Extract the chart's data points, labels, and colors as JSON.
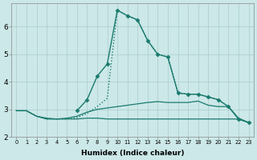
{
  "xlabel": "Humidex (Indice chaleur)",
  "background_color": "#cce8e8",
  "grid_color": "#aacccc",
  "line_color": "#1a7a6e",
  "xlim_min": -0.5,
  "xlim_max": 23.5,
  "ylim_min": 2.2,
  "ylim_max": 6.85,
  "yticks": [
    2,
    3,
    4,
    5,
    6
  ],
  "xticks": [
    0,
    1,
    2,
    3,
    4,
    5,
    6,
    7,
    8,
    9,
    10,
    11,
    12,
    13,
    14,
    15,
    16,
    17,
    18,
    19,
    20,
    21,
    22,
    23
  ],
  "series": [
    {
      "x": [
        0,
        1,
        2,
        3,
        4,
        5,
        6,
        7,
        8,
        9,
        10,
        11,
        12,
        13,
        14,
        15,
        16,
        17,
        18,
        19,
        20,
        21,
        22,
        23
      ],
      "y": [
        2.95,
        2.95,
        2.75,
        2.65,
        2.65,
        2.65,
        2.7,
        2.85,
        3.1,
        3.4,
        6.6,
        6.4,
        6.25,
        5.5,
        5.0,
        4.9,
        3.6,
        3.55,
        3.55,
        3.45,
        3.35,
        3.1,
        2.65,
        2.52
      ],
      "ls": "dotted",
      "marker": null,
      "ms": 0,
      "lw": 1.0
    },
    {
      "x": [
        6,
        7,
        8,
        9,
        10,
        11,
        12,
        13,
        14,
        15,
        16,
        17,
        18,
        19,
        20,
        21,
        22,
        23
      ],
      "y": [
        2.95,
        3.35,
        4.2,
        4.65,
        6.6,
        6.4,
        6.25,
        5.5,
        5.0,
        4.9,
        3.6,
        3.55,
        3.55,
        3.45,
        3.35,
        3.1,
        2.65,
        2.52
      ],
      "ls": "solid",
      "marker": "D",
      "ms": 2.5,
      "lw": 1.0
    },
    {
      "x": [
        0,
        1,
        2,
        3,
        4,
        5,
        6,
        7,
        8,
        9,
        10,
        11,
        12,
        13,
        14,
        15,
        16,
        17,
        18,
        19,
        20,
        21,
        22,
        23
      ],
      "y": [
        2.95,
        2.95,
        2.75,
        2.68,
        2.65,
        2.68,
        2.75,
        2.9,
        3.0,
        3.05,
        3.1,
        3.15,
        3.2,
        3.25,
        3.28,
        3.25,
        3.25,
        3.25,
        3.3,
        3.15,
        3.1,
        3.1,
        2.68,
        2.52
      ],
      "ls": "solid",
      "marker": null,
      "ms": 0,
      "lw": 0.9
    },
    {
      "x": [
        0,
        1,
        2,
        3,
        4,
        5,
        6,
        7,
        8,
        9,
        10,
        11,
        12,
        13,
        14,
        15,
        16,
        17,
        18,
        19,
        20,
        21,
        22,
        23
      ],
      "y": [
        2.95,
        2.95,
        2.75,
        2.65,
        2.65,
        2.65,
        2.65,
        2.68,
        2.68,
        2.65,
        2.65,
        2.65,
        2.65,
        2.65,
        2.65,
        2.65,
        2.65,
        2.65,
        2.65,
        2.65,
        2.65,
        2.65,
        2.65,
        2.52
      ],
      "ls": "solid",
      "marker": null,
      "ms": 0,
      "lw": 0.9
    }
  ]
}
